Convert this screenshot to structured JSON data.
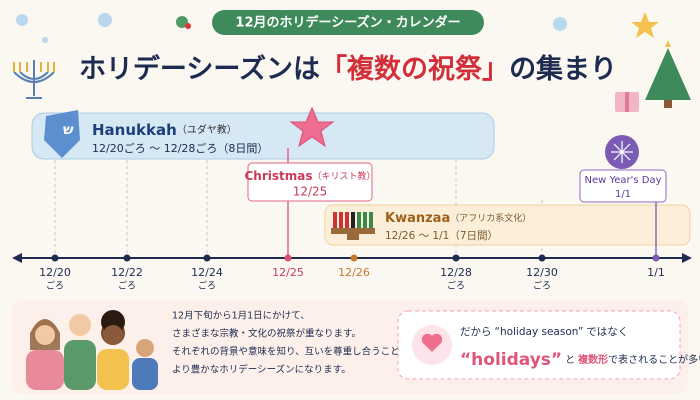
{
  "header": {
    "badge": "12月のホリデーシーズン・カレンダー",
    "title": {
      "before": "ホリデーシーズンは",
      "highlight": "「複数の祝祭」",
      "after": "の集まり"
    }
  },
  "events": [
    {
      "name": "Hanukkah",
      "note": "（ユダヤ教）",
      "dates": "12/20ごろ ～ 12/28ごろ（8日間）"
    },
    {
      "name": "Christmas",
      "note": "（キリスト教）",
      "dates": "12/25"
    },
    {
      "name": "Kwanzaa",
      "note": "（アフリカ系文化）",
      "dates": "12/26 ～ 1/1（7日間）"
    },
    {
      "name": "New Year's Day",
      "dates": "1/1"
    }
  ],
  "timeline": [
    {
      "date": "12/20",
      "sub": "ごろ"
    },
    {
      "date": "12/22",
      "sub": "ごろ"
    },
    {
      "date": "12/24",
      "sub": "ごろ"
    },
    {
      "date": "12/25"
    },
    {
      "date": "12/26"
    },
    {
      "date": "12/28",
      "sub": "ごろ"
    },
    {
      "date": "12/30",
      "sub": "ごろ"
    },
    {
      "date": "1/1"
    }
  ],
  "footer": {
    "lines": [
      "12月下旬から1月1日にかけて、",
      "さまざまな宗教・文化の祝祭が重なります。",
      "それぞれの背景や意味を知り、互いを尊重し合うことで、",
      "より豊かなホリデーシーズンになります。"
    ],
    "callout": {
      "a": "だから",
      "b": "“holiday season”",
      "c": "ではなく",
      "d": "“holidays”",
      "e": "と",
      "f": "複数形",
      "g": "で表されることが多い"
    }
  }
}
